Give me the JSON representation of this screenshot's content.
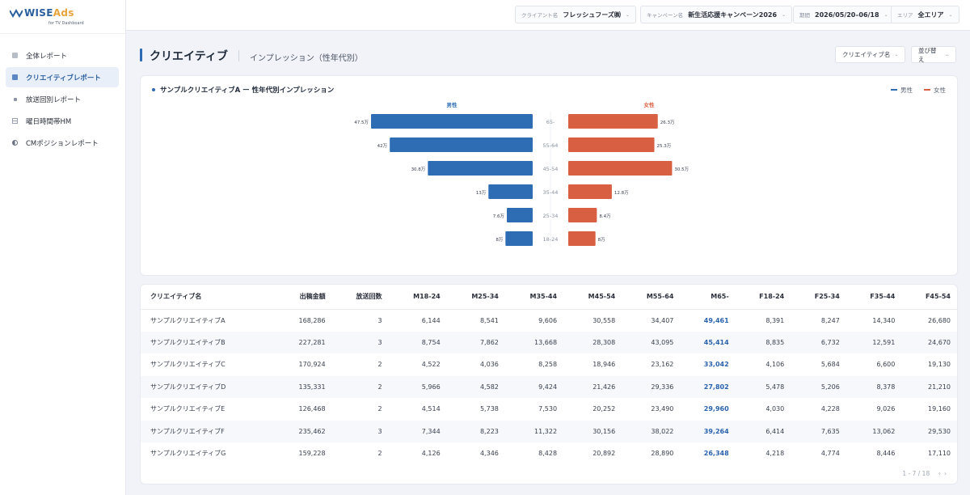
{
  "app": {
    "logo_main": "WISE",
    "logo_accent": "Ads",
    "logo_sub": "for TV Dashboard"
  },
  "sidebar": {
    "items": [
      {
        "label": "全体レポート",
        "icon": "square-icon"
      },
      {
        "label": "クリエイティブレポート",
        "icon": "square-icon",
        "active": true
      },
      {
        "label": "放送回別レポート",
        "icon": "dot-icon"
      },
      {
        "label": "曜日時間帯HM",
        "icon": "grid-icon"
      },
      {
        "label": "CMポジションレポート",
        "icon": "half-circle-icon"
      }
    ]
  },
  "filters": {
    "client": {
      "label": "クライアント名",
      "value": "フレッシュフーズ㈱"
    },
    "campaign": {
      "label": "キャンペーン名",
      "value": "新生活応援キャンペーン2026"
    },
    "period": {
      "label": "期間",
      "value": "2026/05/20–06/18"
    },
    "area": {
      "label": "エリア",
      "value": "全エリア"
    }
  },
  "header": {
    "title": "クリエイティブ",
    "subtitle": "インプレッション（性年代別）",
    "btn_creative": "クリエイティブ名",
    "btn_sort": "並び替え"
  },
  "chart": {
    "title": "サンプルクリエイティブA ー 性年代別インプレッション",
    "legend_male": "男性",
    "legend_female": "女性",
    "colors": {
      "male": "#2e6db3",
      "female": "#d95f43"
    }
  },
  "chart_data": {
    "type": "bar",
    "orientation": "horizontal-butterfly",
    "categories": [
      "65-",
      "55-64",
      "45-54",
      "35-44",
      "25-34",
      "18-24"
    ],
    "series": [
      {
        "name": "男性",
        "values": [
          47.5,
          42,
          30.8,
          13,
          7.6,
          8
        ],
        "labels": [
          "47.5万",
          "42万",
          "30.8万",
          "13万",
          "7.6万",
          "8万"
        ]
      },
      {
        "name": "女性",
        "values": [
          26.3,
          25.3,
          30.5,
          12.8,
          8.4,
          8
        ],
        "labels": [
          "26.3万",
          "25.3万",
          "30.5万",
          "12.8万",
          "8.4万",
          "8万"
        ]
      }
    ],
    "max": 47.5
  },
  "table": {
    "headers": [
      "クリエイティブ名",
      "出稿金額",
      "放送回数",
      "M18-24",
      "M25-34",
      "M35-44",
      "M45-54",
      "M55-64",
      "M65-",
      "F18-24",
      "F25-34",
      "F35-44",
      "F45-54"
    ],
    "rows": [
      [
        "サンプルクリエイティブA",
        "168,286",
        "3",
        "6,144",
        "8,541",
        "9,606",
        "30,558",
        "34,407",
        "49,461",
        "8,391",
        "8,247",
        "14,340",
        "26,680"
      ],
      [
        "サンプルクリエイティブB",
        "227,281",
        "3",
        "8,754",
        "7,862",
        "13,668",
        "28,308",
        "43,095",
        "45,414",
        "8,835",
        "6,732",
        "12,591",
        "24,670"
      ],
      [
        "サンプルクリエイティブC",
        "170,924",
        "2",
        "4,522",
        "4,036",
        "8,258",
        "18,946",
        "23,162",
        "33,042",
        "4,106",
        "5,684",
        "6,600",
        "19,130"
      ],
      [
        "サンプルクリエイティブD",
        "135,331",
        "2",
        "5,966",
        "4,582",
        "9,424",
        "21,426",
        "29,336",
        "27,802",
        "5,478",
        "5,206",
        "8,378",
        "21,210"
      ],
      [
        "サンプルクリエイティブE",
        "126,468",
        "2",
        "4,514",
        "5,738",
        "7,530",
        "20,252",
        "23,490",
        "29,960",
        "4,030",
        "4,228",
        "9,026",
        "19,160"
      ],
      [
        "サンプルクリエイティブF",
        "235,462",
        "3",
        "7,344",
        "8,223",
        "11,322",
        "30,156",
        "38,022",
        "39,264",
        "6,414",
        "7,635",
        "13,062",
        "29,530"
      ],
      [
        "サンプルクリエイティブG",
        "159,228",
        "2",
        "4,126",
        "4,346",
        "8,428",
        "20,892",
        "28,890",
        "26,348",
        "4,218",
        "4,774",
        "8,446",
        "17,110"
      ]
    ],
    "highlight_col": 8,
    "pager": "1 - 7 / 18",
    "pager_arrows": "‹ ›"
  }
}
